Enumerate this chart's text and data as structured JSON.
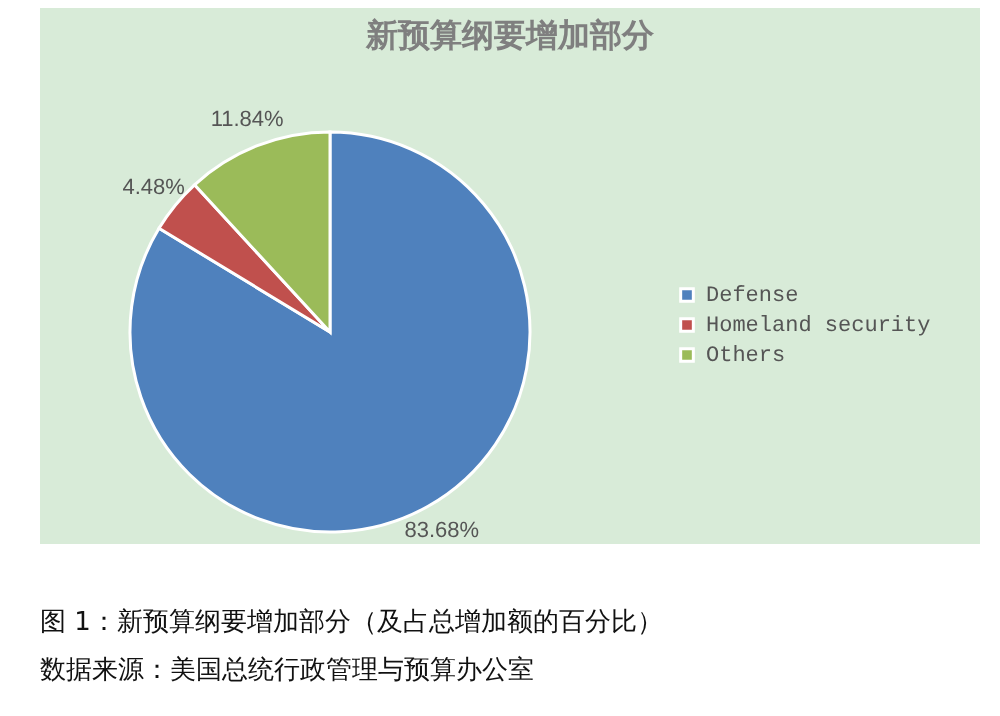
{
  "chart_data": {
    "type": "pie",
    "title": "新预算纲要增加部分",
    "categories": [
      "Defense",
      "Homeland security",
      "Others"
    ],
    "values": [
      83.68,
      4.48,
      11.84
    ],
    "colors": [
      "#4f81bd",
      "#c0504d",
      "#9bbb59"
    ],
    "value_labels": [
      "83.68%",
      "4.48%",
      "11.84%"
    ],
    "legend": "right",
    "annotations": [
      "图 1：新预算纲要增加部分（及占总增加额的百分比）",
      "数据来源：美国总统行政管理与预算办公室"
    ]
  }
}
